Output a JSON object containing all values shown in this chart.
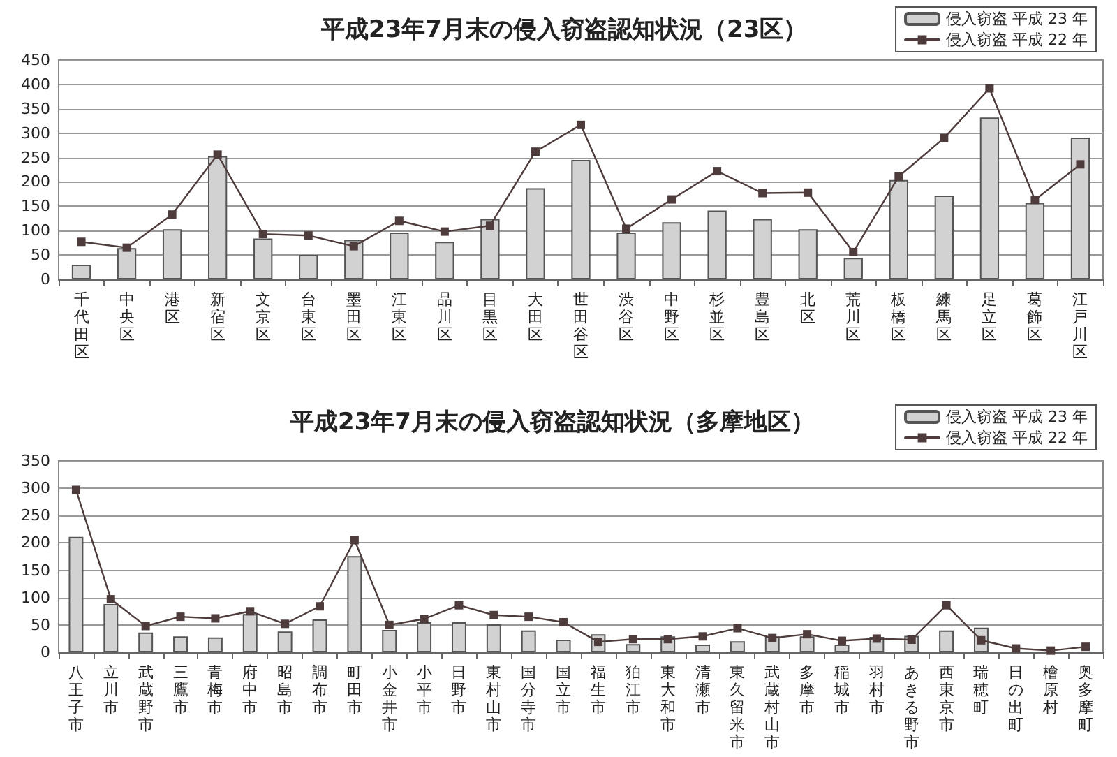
{
  "chart_data": [
    {
      "type": "bar",
      "title": "平成23年7月末の侵入窃盗認知状況（23区）",
      "categories": [
        "千代田区",
        "中央区",
        "港区",
        "新宿区",
        "文京区",
        "台東区",
        "墨田区",
        "江東区",
        "品川区",
        "目黒区",
        "大田区",
        "世田谷区",
        "渋谷区",
        "中野区",
        "杉並区",
        "豊島区",
        "北区",
        "荒川区",
        "板橋区",
        "練馬区",
        "足立区",
        "葛飾区",
        "江戸川区"
      ],
      "series": [
        {
          "name": "侵入窃盗 平成 23 年",
          "color": "#d2d2d2",
          "values": [
            30,
            64,
            103,
            253,
            84,
            50,
            81,
            96,
            77,
            124,
            187,
            245,
            96,
            117,
            141,
            124,
            103,
            44,
            204,
            172,
            332,
            157,
            291
          ]
        },
        {
          "name": "侵入窃盗 平成 22 年",
          "type": "line",
          "color": "#4e3c3c",
          "values": [
            77,
            65,
            133,
            256,
            93,
            90,
            68,
            120,
            98,
            110,
            262,
            317,
            104,
            164,
            222,
            177,
            178,
            56,
            211,
            290,
            392,
            163,
            236
          ]
        }
      ],
      "ylim": [
        0,
        450
      ],
      "yticks": [
        0,
        50,
        100,
        150,
        200,
        250,
        300,
        350,
        400,
        450
      ],
      "grid": "y",
      "legend": "top right",
      "marker": "square"
    },
    {
      "type": "bar",
      "title": "平成23年7月末の侵入窃盗認知状況（多摩地区）",
      "categories": [
        "八王子市",
        "立川市",
        "武蔵野市",
        "三鷹市",
        "青梅市",
        "府中市",
        "昭島市",
        "調布市",
        "町田市",
        "小金井市",
        "小平市",
        "日野市",
        "東村山市",
        "国分寺市",
        "国立市",
        "福生市",
        "狛江市",
        "東大和市",
        "清瀬市",
        "東久留米市",
        "武蔵村山市",
        "多摩市",
        "稲城市",
        "羽村市",
        "あきる野市",
        "西東京市",
        "瑞穂町",
        "日の出町",
        "檜原村",
        "奥多摩町"
      ],
      "series": [
        {
          "name": "侵入窃盗 平成 23 年",
          "color": "#d2d2d2",
          "values": [
            211,
            88,
            36,
            29,
            27,
            70,
            38,
            60,
            176,
            41,
            55,
            55,
            51,
            40,
            23,
            33,
            15,
            29,
            14,
            20,
            29,
            29,
            14,
            28,
            30,
            40,
            45,
            0,
            0,
            0
          ]
        },
        {
          "name": "侵入窃盗 平成 22 年",
          "type": "line",
          "color": "#4e3c3c",
          "values": [
            297,
            97,
            48,
            65,
            62,
            75,
            52,
            84,
            205,
            50,
            61,
            86,
            68,
            65,
            55,
            19,
            24,
            24,
            29,
            44,
            26,
            33,
            21,
            25,
            23,
            86,
            22,
            7,
            3,
            10
          ]
        }
      ],
      "ylim": [
        0,
        350
      ],
      "yticks": [
        0,
        50,
        100,
        150,
        200,
        250,
        300,
        350
      ],
      "grid": "y",
      "legend": "top right",
      "marker": "square"
    }
  ]
}
